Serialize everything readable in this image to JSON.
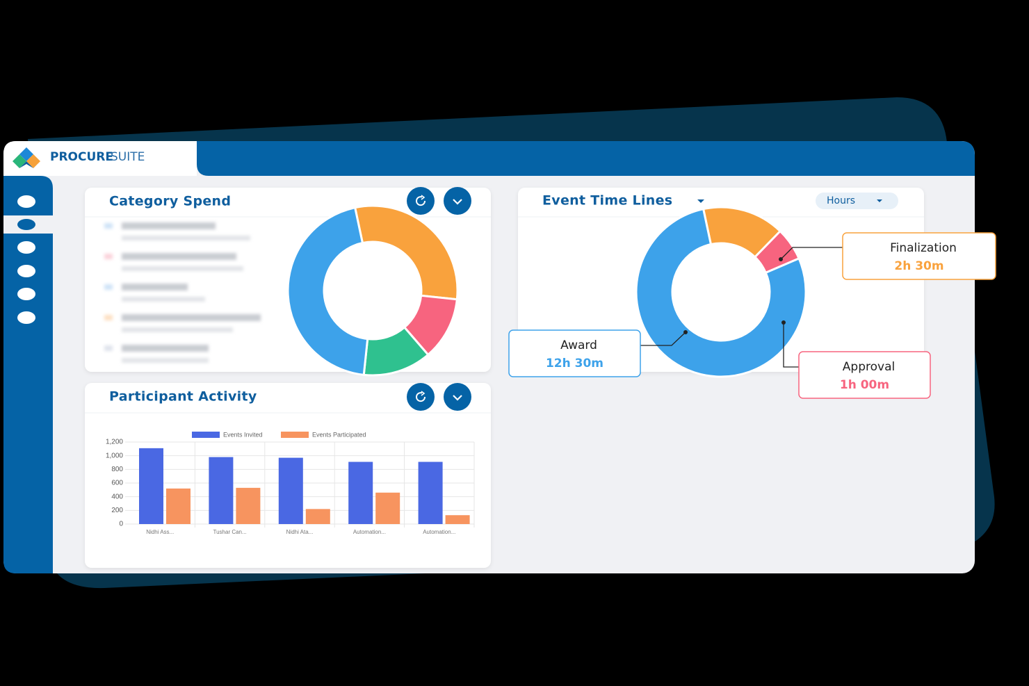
{
  "header": {
    "brand_bold": "PROCURE",
    "brand_light": "SUITE"
  },
  "chart_data": [
    {
      "type": "pie",
      "title": "Category Spend",
      "values": [
        30,
        12,
        13,
        45
      ],
      "colors": [
        "#f9a23d",
        "#f7647f",
        "#2fc18f",
        "#3da2ea"
      ]
    },
    {
      "type": "pie",
      "title": "Event Time Lines",
      "unit_selector": "Hours",
      "categories": [
        "Finalization",
        "Approval",
        "Award"
      ],
      "values": [
        2.5,
        1,
        12.5
      ],
      "value_labels": [
        "2h 30m",
        "1h 00m",
        "12h 30m"
      ],
      "colors": [
        "#f9a23d",
        "#f7647f",
        "#3da2ea"
      ]
    },
    {
      "type": "bar",
      "title": "Participant Activity",
      "categories": [
        "Nidhi Ass...",
        "Tushar Can...",
        "Nidhi Ata...",
        "Automation...",
        "Automation..."
      ],
      "series": [
        {
          "name": "Events Invited",
          "color": "#4a68e3",
          "values": [
            1110,
            980,
            970,
            910,
            910
          ]
        },
        {
          "name": "Events Participated",
          "color": "#f7945f",
          "values": [
            520,
            530,
            220,
            460,
            130
          ]
        }
      ],
      "ylim": [
        0,
        1200
      ],
      "yticks": [
        0,
        200,
        400,
        600,
        800,
        {
          "value": 1000,
          "label": "1,000"
        },
        {
          "value": 1200,
          "label": "1,200"
        }
      ],
      "grid": true
    }
  ]
}
